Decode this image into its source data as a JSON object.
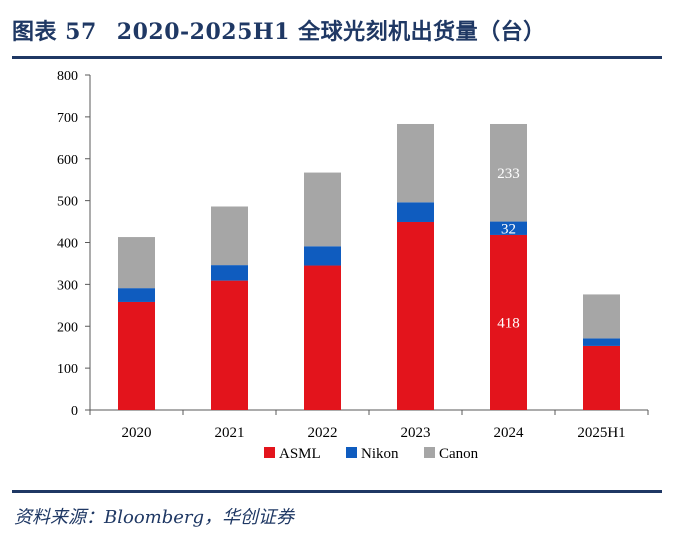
{
  "header": {
    "figure_no": "图表 57",
    "title": "2020-2025H1 全球光刻机出货量（台）"
  },
  "footer": {
    "source": "资料来源：Bloomberg，华创证券"
  },
  "colors": {
    "title": "#1f3864",
    "asml": "#e3141c",
    "nikon": "#0f5cbf",
    "canon": "#a6a6a6"
  },
  "chart_data": {
    "type": "bar",
    "stacked": true,
    "title": "2020-2025H1 全球光刻机出货量（台）",
    "xlabel": "",
    "ylabel": "",
    "ylim": [
      0,
      800
    ],
    "yticks": [
      0,
      100,
      200,
      300,
      400,
      500,
      600,
      700,
      800
    ],
    "categories": [
      "2020",
      "2021",
      "2022",
      "2023",
      "2024",
      "2025H1"
    ],
    "series": [
      {
        "name": "ASML",
        "color": "#e3141c",
        "values": [
          258,
          309,
          345,
          449,
          418,
          153
        ]
      },
      {
        "name": "Nikon",
        "color": "#0f5cbf",
        "values": [
          33,
          37,
          46,
          47,
          32,
          18
        ]
      },
      {
        "name": "Canon",
        "color": "#a6a6a6",
        "values": [
          122,
          140,
          176,
          187,
          233,
          105
        ]
      }
    ],
    "data_labels": [
      {
        "category": "2024",
        "series": "ASML",
        "text": "418"
      },
      {
        "category": "2024",
        "series": "Nikon",
        "text": "32"
      },
      {
        "category": "2024",
        "series": "Canon",
        "text": "233"
      }
    ],
    "legend": {
      "position": "bottom",
      "entries": [
        "ASML",
        "Nikon",
        "Canon"
      ]
    },
    "grid": false
  }
}
